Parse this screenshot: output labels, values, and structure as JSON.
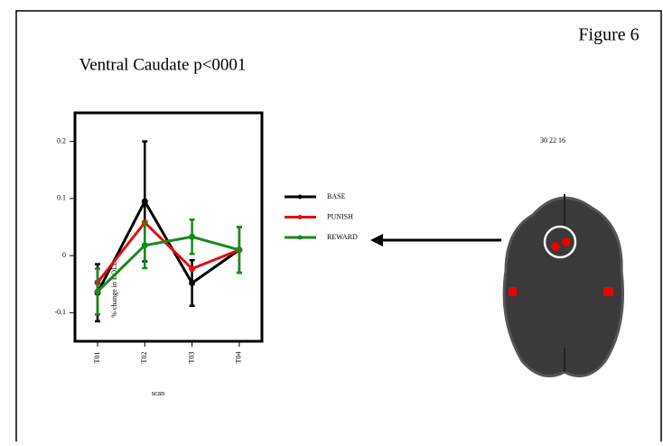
{
  "figure_label": "Figure 6",
  "image_coords": "30 22 16",
  "chart_data": {
    "type": "line",
    "title": "Ventral Caudate p<0001",
    "xlabel": "scan",
    "ylabel": "% change in BOLD",
    "categories": [
      "T01",
      "T02",
      "T03",
      "T04"
    ],
    "ylim": [
      -0.15,
      0.25
    ],
    "yticks": [
      -0.1,
      0,
      0.1,
      0.2
    ],
    "series": [
      {
        "name": "BASE",
        "color": "#000000",
        "values": [
          -0.065,
          0.095,
          -0.048,
          0.01
        ],
        "errors": [
          0.05,
          0.105,
          0.04,
          0.04
        ]
      },
      {
        "name": "PUNISH",
        "color": "#e01010",
        "values": [
          -0.047,
          0.058,
          -0.023,
          0.01
        ]
      },
      {
        "name": "REWARD",
        "color": "#1a8a1a",
        "values": [
          -0.063,
          0.018,
          0.033,
          0.01
        ],
        "errors": [
          0.04,
          0.04,
          0.03,
          0.04
        ]
      }
    ]
  }
}
